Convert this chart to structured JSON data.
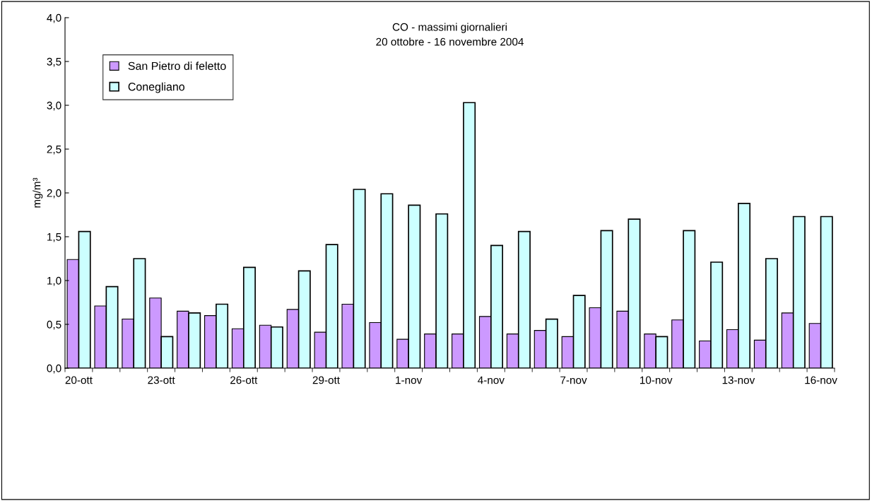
{
  "chart_data": {
    "type": "bar",
    "title": "CO - massimi giornalieri\n20 ottobre - 16 novembre 2004",
    "ylabel": "mg/m³",
    "categories": [
      "20-ott",
      null,
      null,
      "23-ott",
      null,
      null,
      "26-ott",
      null,
      null,
      "29-ott",
      null,
      null,
      "1-nov",
      null,
      null,
      "4-nov",
      null,
      null,
      "7-nov",
      null,
      null,
      "10-nov",
      null,
      null,
      "13-nov",
      null,
      null,
      "16-nov"
    ],
    "series": [
      {
        "name": "San Pietro di feletto",
        "color": "#cc99ff",
        "values": [
          1.24,
          0.71,
          0.56,
          0.8,
          0.65,
          0.6,
          0.45,
          0.49,
          0.67,
          0.41,
          0.73,
          0.52,
          0.33,
          0.39,
          0.39,
          0.59,
          0.39,
          0.43,
          0.36,
          0.69,
          0.65,
          0.39,
          0.55,
          0.31,
          0.44,
          0.32,
          0.63,
          0.51
        ]
      },
      {
        "name": "Conegliano",
        "color": "#ccffff",
        "values": [
          1.56,
          0.93,
          1.25,
          0.36,
          0.63,
          0.73,
          1.15,
          0.47,
          1.11,
          1.41,
          2.04,
          1.99,
          1.86,
          1.76,
          3.03,
          1.4,
          1.56,
          0.56,
          0.83,
          1.57,
          1.7,
          0.36,
          1.57,
          1.21,
          1.88,
          1.25,
          1.73,
          1.73
        ]
      }
    ],
    "ylim": [
      0,
      4
    ],
    "yticks": [
      {
        "value": 0,
        "label": "0,0"
      },
      {
        "value": 0.5,
        "label": "0,5"
      },
      {
        "value": 1,
        "label": "1,0"
      },
      {
        "value": 1.5,
        "label": "1,5"
      },
      {
        "value": 2,
        "label": "2,0"
      },
      {
        "value": 2.5,
        "label": "2,5"
      },
      {
        "value": 3,
        "label": "3,0"
      },
      {
        "value": 3.5,
        "label": "3,5"
      },
      {
        "value": 4,
        "label": "4,0"
      }
    ],
    "legend": "top left",
    "grid": false
  }
}
